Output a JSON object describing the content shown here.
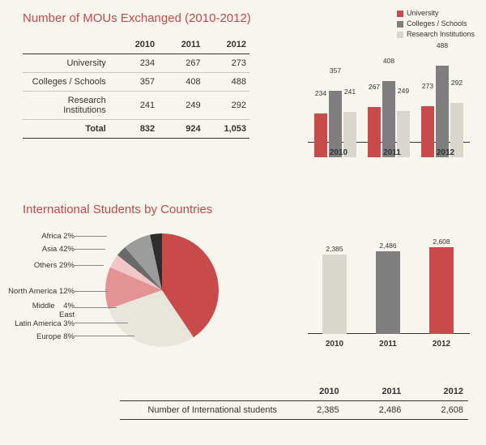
{
  "colors": {
    "university": "#c94a4a",
    "colleges": "#7f7f7f",
    "research": "#d8d6cd",
    "accent_title": "#c24a4a",
    "bg": "#f7f5ee",
    "grid": "#333333",
    "pie_asia": "#c94a4a",
    "pie_others": "#e8e6dc",
    "pie_na": "#e39393",
    "pie_me": "#f0c6c6",
    "pie_la": "#6a6a6a",
    "pie_eu": "#9c9c9c",
    "pie_africa": "#2d2d2d"
  },
  "section1": {
    "title": "Number of MOUs Exchanged (2010-2012)",
    "years": [
      "2010",
      "2011",
      "2012"
    ],
    "rows": [
      {
        "label": "University",
        "vals": [
          "234",
          "267",
          "273"
        ]
      },
      {
        "label": "Colleges / Schools",
        "vals": [
          "357",
          "408",
          "488"
        ]
      },
      {
        "label": "Research Institutions",
        "vals": [
          "241",
          "249",
          "292"
        ]
      },
      {
        "label": "Total",
        "vals": [
          "832",
          "924",
          "1,053"
        ]
      }
    ],
    "legend": [
      "University",
      "Colleges / Schools",
      "Research Institutions"
    ],
    "chart": {
      "type": "bar",
      "ymax": 520,
      "groups": [
        {
          "year": "2010",
          "vals": [
            234,
            357,
            241
          ]
        },
        {
          "year": "2011",
          "vals": [
            267,
            408,
            249
          ]
        },
        {
          "year": "2012",
          "vals": [
            273,
            488,
            292
          ]
        }
      ]
    }
  },
  "section2": {
    "title": "International Students by Countries",
    "pie": {
      "type": "pie",
      "slices": [
        {
          "label": "Asia",
          "pct": 42,
          "color_key": "pie_asia"
        },
        {
          "label": "Others",
          "pct": 29,
          "color_key": "pie_others"
        },
        {
          "label": "North America",
          "pct": 12,
          "color_key": "pie_na"
        },
        {
          "label": "Middle\nEast",
          "pct": 4,
          "color_key": "pie_me"
        },
        {
          "label": "Latin America",
          "pct": 3,
          "color_key": "pie_la"
        },
        {
          "label": "Europe",
          "pct": 8,
          "color_key": "pie_eu"
        },
        {
          "label": "Africa",
          "pct": 2,
          "color_key": "pie_africa"
        }
      ],
      "label_text": {
        "africa": "Africa  2%",
        "asia": "Asia  42%",
        "others": "Others  29%",
        "na": "North America  12%",
        "me": "Middle    4%\nEast",
        "la": "Latin America  3%",
        "eu": "Europe  8%"
      }
    },
    "students_chart": {
      "type": "bar",
      "ymax": 2800,
      "bars": [
        {
          "year": "2010",
          "val": 2385,
          "label": "2,385",
          "color_key": "research"
        },
        {
          "year": "2011",
          "val": 2486,
          "label": "2,486",
          "color_key": "colleges"
        },
        {
          "year": "2012",
          "val": 2608,
          "label": "2,608",
          "color_key": "university"
        }
      ]
    },
    "table": {
      "years": [
        "2010",
        "2011",
        "2012"
      ],
      "rowlabel": "Number of International students",
      "vals": [
        "2,385",
        "2,486",
        "2,608"
      ]
    }
  }
}
